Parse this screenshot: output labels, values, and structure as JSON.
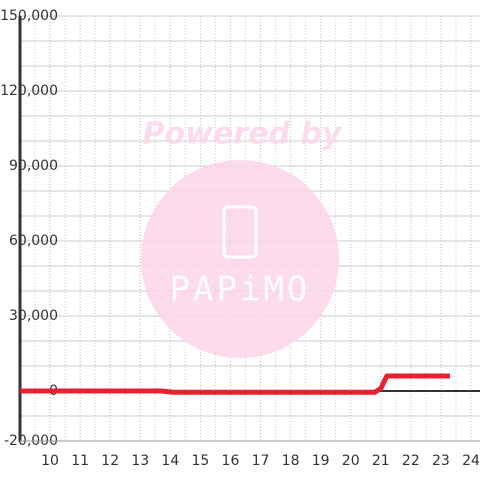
{
  "chart_data": {
    "type": "line",
    "x": [
      9,
      13.7,
      14.1,
      20.8,
      21.0,
      21.2,
      23.3
    ],
    "series": [
      {
        "color": "#e8212f",
        "values": [
          0,
          0,
          -500,
          -500,
          1000,
          6000,
          6000
        ]
      }
    ],
    "xlim": [
      9,
      24.3
    ],
    "ylim": [
      -20000,
      150000
    ],
    "xticks": [
      10,
      11,
      12,
      13,
      14,
      15,
      16,
      17,
      18,
      19,
      20,
      21,
      22,
      23,
      24
    ],
    "yticks": [
      {
        "value": -20000,
        "label": "-20,000"
      },
      0,
      {
        "value": 30000,
        "label": "30,000"
      },
      {
        "value": 60000,
        "label": "60,000"
      },
      {
        "value": 90000,
        "label": "90,000"
      },
      {
        "value": 120000,
        "label": "120,000"
      },
      {
        "value": 150000,
        "label": "150,000"
      }
    ],
    "ygrid": [
      -10000,
      10000,
      20000,
      40000,
      50000,
      70000,
      80000,
      100000,
      110000,
      130000,
      140000
    ],
    "xgrid": [
      9.5,
      10.5,
      11.5,
      12.5,
      13.5,
      14.5,
      15.5,
      16.5,
      17.5,
      18.5,
      19.5,
      20.5,
      21.5,
      22.5,
      23.5
    ],
    "grid": true,
    "watermark": {
      "top": "Powered by",
      "logo": "PAPiMO"
    }
  }
}
